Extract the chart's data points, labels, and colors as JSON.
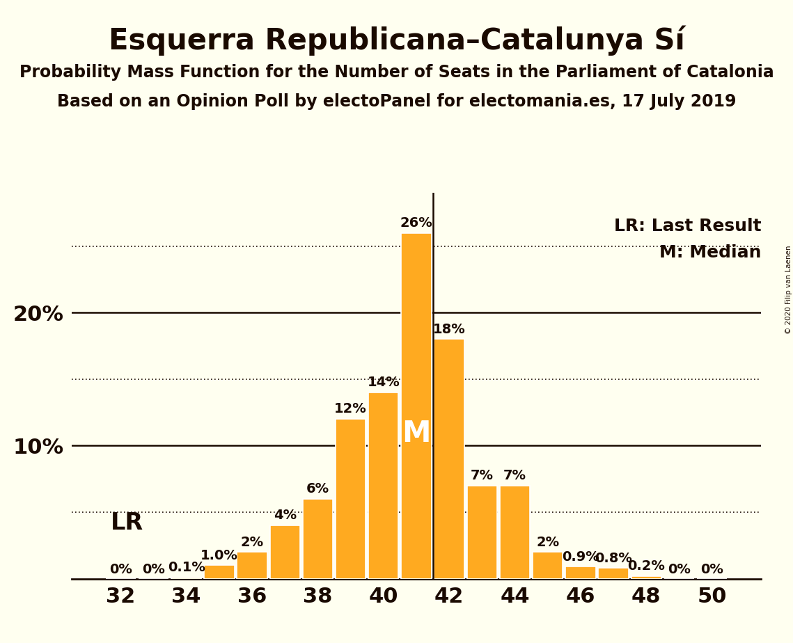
{
  "title": "Esquerra Republicana–Catalunya Sí",
  "subtitle1": "Probability Mass Function for the Number of Seats in the Parliament of Catalonia",
  "subtitle2": "Based on an Opinion Poll by electoPanel for electomania.es, 17 July 2019",
  "copyright": "© 2020 Filip van Laenen",
  "seats": [
    32,
    33,
    34,
    35,
    36,
    37,
    38,
    39,
    40,
    41,
    42,
    43,
    44,
    45,
    46,
    47,
    48,
    49,
    50
  ],
  "values": [
    0.0,
    0.0,
    0.1,
    1.0,
    2.0,
    4.0,
    6.0,
    12.0,
    14.0,
    26.0,
    18.0,
    7.0,
    7.0,
    2.0,
    0.9,
    0.8,
    0.2,
    0.0,
    0.0
  ],
  "labels": [
    "0%",
    "0%",
    "0.1%",
    "1.0%",
    "2%",
    "4%",
    "6%",
    "12%",
    "14%",
    "26%",
    "18%",
    "7%",
    "7%",
    "2%",
    "0.9%",
    "0.8%",
    "0.2%",
    "0%",
    "0%"
  ],
  "bar_color": "#FFAA20",
  "background_color": "#FFFFF0",
  "text_color": "#1A0A00",
  "lr_seat": 32,
  "lr_label": "LR",
  "lr_line_label": "LR: Last Result",
  "median_seat": 41,
  "median_label": "M",
  "median_line_label": "M: Median",
  "solid_gridlines": [
    10.0,
    20.0
  ],
  "dotted_gridlines": [
    5.0,
    15.0,
    25.0
  ],
  "ylim": [
    0,
    29
  ],
  "xlabel_seats": [
    32,
    34,
    36,
    38,
    40,
    42,
    44,
    46,
    48,
    50
  ],
  "title_fontsize": 30,
  "subtitle1_fontsize": 17,
  "subtitle2_fontsize": 17,
  "ytick_fontsize": 22,
  "xtick_fontsize": 22,
  "bar_label_fontsize": 14,
  "legend_fontsize": 18,
  "lr_label_fontsize": 24,
  "median_in_bar_fontsize": 30
}
